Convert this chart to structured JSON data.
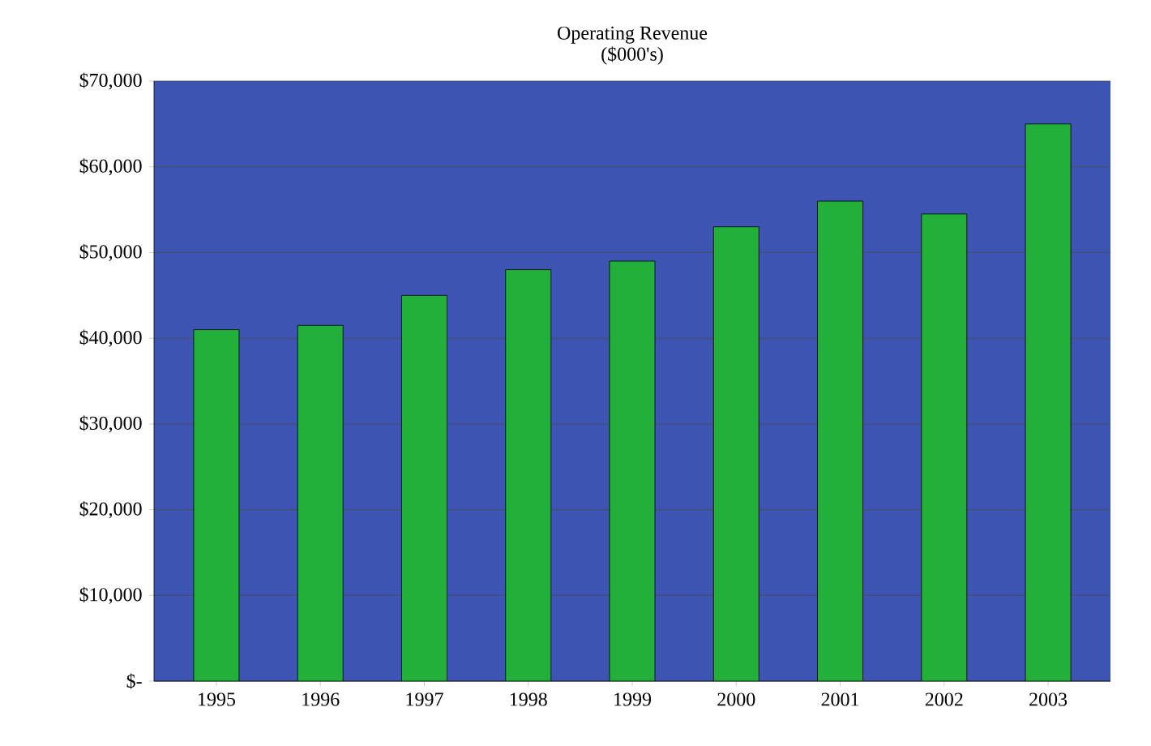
{
  "chart_data": {
    "type": "bar",
    "title": "Operating Revenue",
    "subtitle": "($000's)",
    "categories": [
      "1995",
      "1996",
      "1997",
      "1998",
      "1999",
      "2000",
      "2001",
      "2002",
      "2003"
    ],
    "values": [
      41000,
      41500,
      45000,
      48000,
      49000,
      53000,
      56000,
      54500,
      65000
    ],
    "color": "#22b03a",
    "ylim": [
      0,
      70000
    ],
    "yticks": [
      {
        "value": 0,
        "label": "$-"
      },
      {
        "value": 10000,
        "label": "$10,000"
      },
      {
        "value": 20000,
        "label": "$20,000"
      },
      {
        "value": 30000,
        "label": "$30,000"
      },
      {
        "value": 40000,
        "label": "$40,000"
      },
      {
        "value": 50000,
        "label": "$50,000"
      },
      {
        "value": 60000,
        "label": "$60,000"
      },
      {
        "value": 70000,
        "label": "$70,000"
      }
    ],
    "grid": "y"
  }
}
